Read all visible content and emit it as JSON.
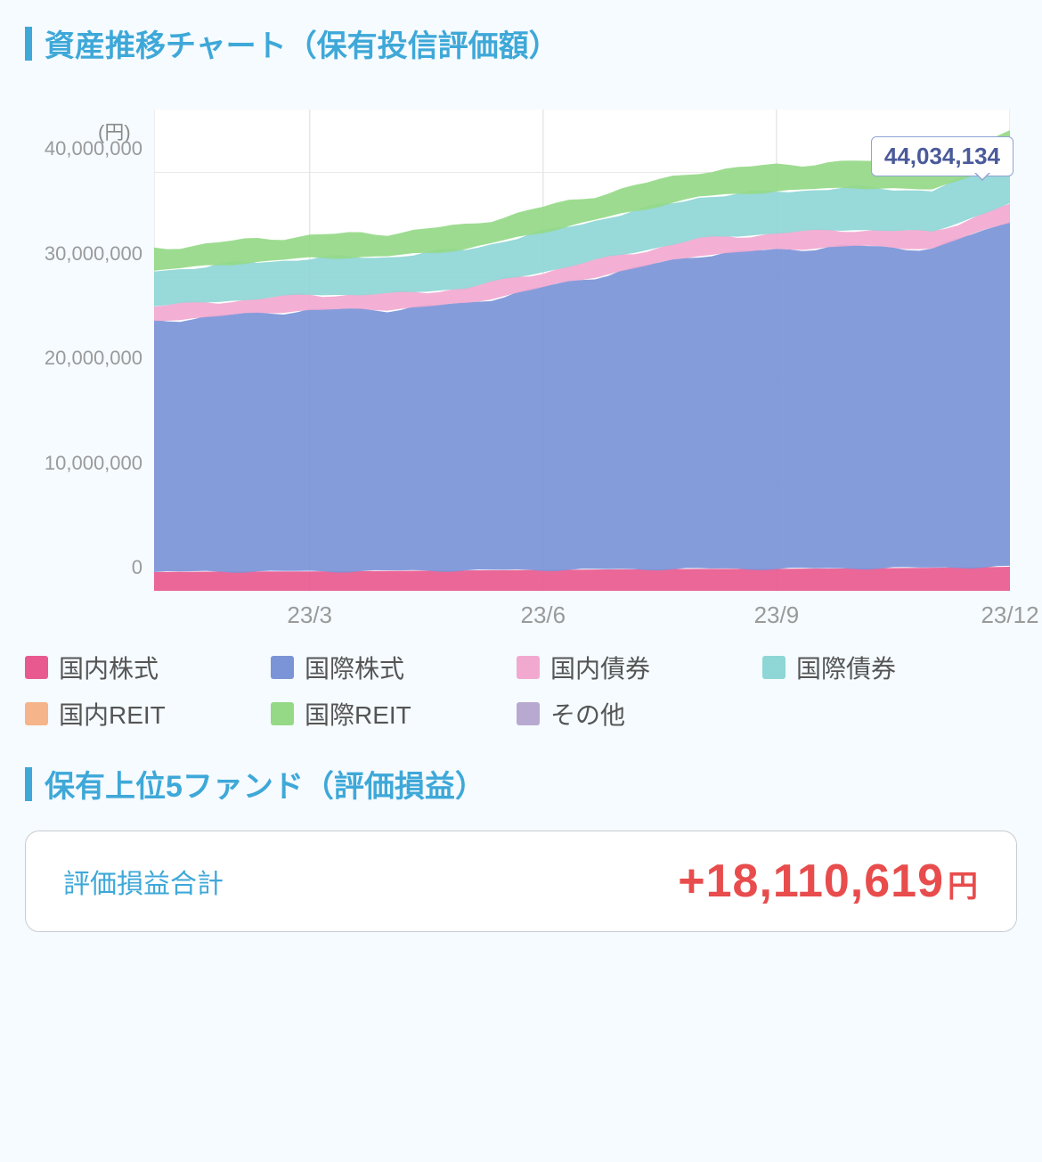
{
  "section1": {
    "title": "資産推移チャート（保有投信評価額）",
    "y_unit": "(円)"
  },
  "section2": {
    "title": "保有上位5ファンド（評価損益）"
  },
  "tooltip": {
    "value": "44,034,134"
  },
  "summary": {
    "label": "評価損益合計",
    "value": "+18,110,619",
    "unit": "円"
  },
  "chart": {
    "type": "stacked-area",
    "background_color": "#ffffff",
    "grid_color": "#e6e6e6",
    "baseline_color": "#b8b8b8",
    "y_axis": {
      "min": 0,
      "max": 46000000,
      "ticks": [
        0,
        10000000,
        20000000,
        30000000,
        40000000
      ],
      "tick_labels": [
        "0",
        "10,000,000",
        "20,000,000",
        "30,000,000",
        "40,000,000"
      ],
      "label_color": "#9a9a9a",
      "label_fontsize": 22
    },
    "x_axis": {
      "min": 0,
      "max": 11,
      "ticks": [
        2,
        5,
        8,
        11
      ],
      "tick_labels": [
        "23/3",
        "23/6",
        "23/9",
        "23/12"
      ],
      "label_color": "#9a9a9a",
      "label_fontsize": 26
    },
    "series": [
      {
        "name": "国内株式",
        "color": "#e85a8f",
        "values": [
          1800000,
          1850000,
          1850000,
          1900000,
          1950000,
          2000000,
          2050000,
          2100000,
          2100000,
          2150000,
          2200000,
          2300000
        ]
      },
      {
        "name": "国際株式",
        "color": "#7b94d8",
        "values": [
          24000000,
          24500000,
          25000000,
          25000000,
          25500000,
          27000000,
          28500000,
          30000000,
          30500000,
          30800000,
          30500000,
          33000000
        ]
      },
      {
        "name": "国内債券",
        "color": "#f2a9d0",
        "values": [
          1400000,
          1400000,
          1450000,
          1450000,
          1500000,
          1500000,
          1550000,
          1550000,
          1600000,
          1600000,
          1600000,
          1700000
        ]
      },
      {
        "name": "国際債券",
        "color": "#8fd6d6",
        "values": [
          3400000,
          3500000,
          3500000,
          3600000,
          3700000,
          3800000,
          3900000,
          4000000,
          4000000,
          4000000,
          4000000,
          4200000
        ]
      },
      {
        "name": "国内REIT",
        "color": "#f5b48a",
        "values": [
          0,
          0,
          0,
          0,
          0,
          0,
          0,
          0,
          0,
          0,
          0,
          0
        ]
      },
      {
        "name": "国際REIT",
        "color": "#95d987",
        "values": [
          2100000,
          2150000,
          2200000,
          2250000,
          2300000,
          2350000,
          2400000,
          2450000,
          2500000,
          2500000,
          2400000,
          2834134
        ]
      },
      {
        "name": "その他",
        "color": "#b8a9d0",
        "values": [
          0,
          0,
          0,
          0,
          0,
          0,
          0,
          0,
          0,
          0,
          0,
          0
        ]
      }
    ],
    "legend_items": [
      {
        "label": "国内株式",
        "color": "#e85a8f"
      },
      {
        "label": "国際株式",
        "color": "#7b94d8"
      },
      {
        "label": "国内債券",
        "color": "#f2a9d0"
      },
      {
        "label": "国際債券",
        "color": "#8fd6d6"
      },
      {
        "label": "国内REIT",
        "color": "#f5b48a"
      },
      {
        "label": "国際REIT",
        "color": "#95d987"
      },
      {
        "label": "その他",
        "color": "#b8a9d0"
      }
    ]
  }
}
